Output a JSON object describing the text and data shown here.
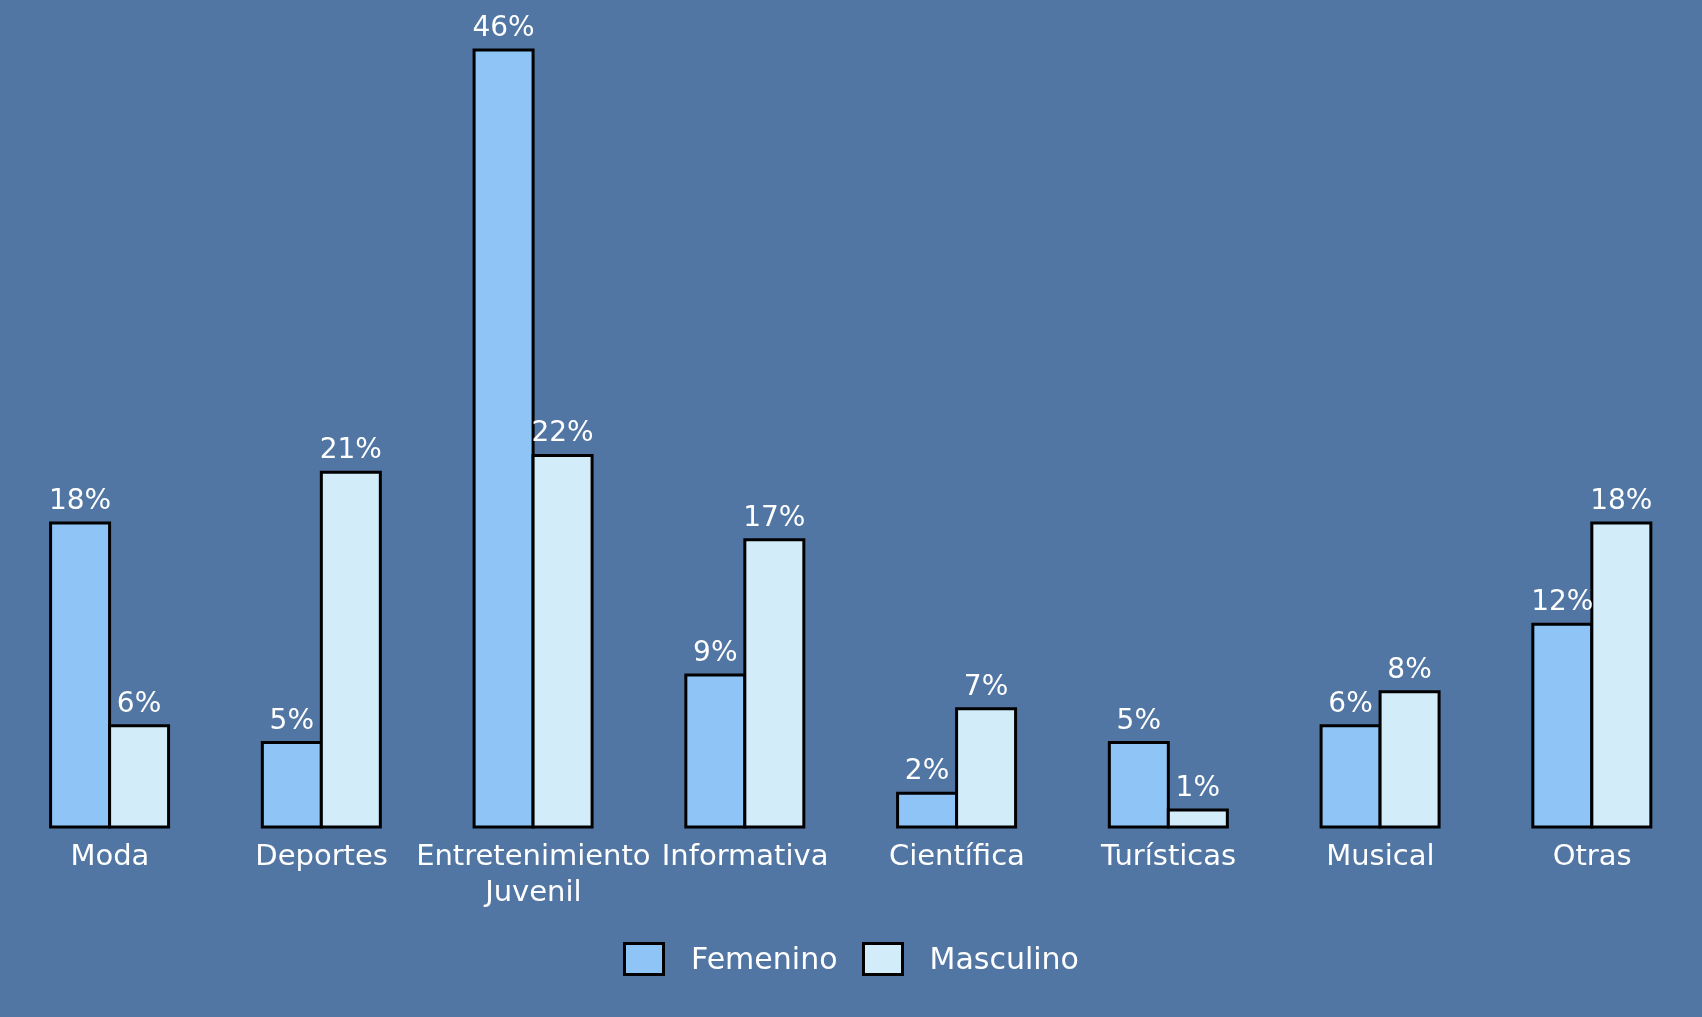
{
  "chart_data": {
    "type": "bar",
    "categories": [
      "Moda",
      "Deportes",
      "Entretenimiento Juvenil",
      "Informativa",
      "Científica",
      "Turísticas",
      "Musical",
      "Otras"
    ],
    "series": [
      {
        "name": "Femenino",
        "color": "#8ec4f6",
        "values": [
          18,
          5,
          46,
          9,
          2,
          5,
          6,
          12
        ],
        "value_labels": [
          "18%",
          "5%",
          "46%",
          "9%",
          "2%",
          "5%",
          "6%",
          "12%"
        ]
      },
      {
        "name": "Masculino",
        "color": "#d2ecfa",
        "values": [
          6,
          21,
          22,
          17,
          7,
          1,
          8,
          18
        ],
        "value_labels": [
          "6%",
          "21%",
          "22%",
          "17%",
          "7%",
          "1%",
          "8%",
          "18%"
        ]
      }
    ],
    "legend": "bottom",
    "grid": false
  }
}
